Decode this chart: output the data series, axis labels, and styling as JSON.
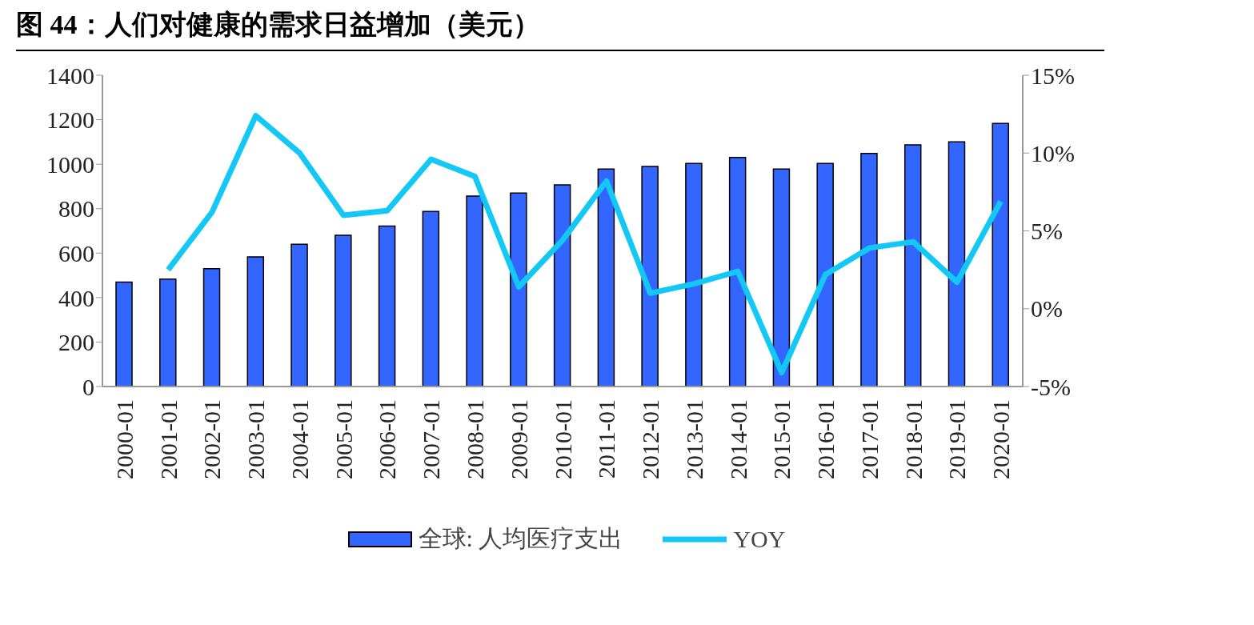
{
  "chart_data": {
    "type": "bar",
    "title": "图 44：人们对健康的需求日益增加（美元）",
    "categories": [
      "2000-01",
      "2001-01",
      "2002-01",
      "2003-01",
      "2004-01",
      "2005-01",
      "2006-01",
      "2007-01",
      "2008-01",
      "2009-01",
      "2010-01",
      "2011-01",
      "2012-01",
      "2013-01",
      "2014-01",
      "2015-01",
      "2016-01",
      "2017-01",
      "2018-01",
      "2019-01",
      "2020-01"
    ],
    "series": [
      {
        "name": "全球: 人均医疗支出",
        "color": "#3366ff",
        "values": [
          470,
          483,
          530,
          583,
          640,
          680,
          722,
          787,
          857,
          870,
          907,
          978,
          990,
          1003,
          1030,
          978,
          1003,
          1048,
          1087,
          1100,
          1183
        ]
      },
      {
        "name": "YOY",
        "type": "line",
        "axis": "y2",
        "color": "#13c8f5",
        "values": [
          null,
          2.5,
          6.2,
          12.4,
          10.0,
          6.0,
          6.3,
          9.6,
          8.5,
          1.4,
          4.4,
          8.2,
          1.0,
          1.6,
          2.4,
          -4.1,
          2.2,
          3.9,
          4.3,
          1.7,
          6.9
        ]
      }
    ],
    "ylim": [
      0,
      1400
    ],
    "yticks": [
      0,
      200,
      400,
      600,
      800,
      1000,
      1200,
      1400
    ],
    "y2lim": [
      -5,
      15
    ],
    "y2ticks": [
      {
        "value": -5,
        "label": "-5%"
      },
      {
        "value": 0,
        "label": "0%"
      },
      {
        "value": 5,
        "label": "5%"
      },
      {
        "value": 10,
        "label": "10%"
      },
      {
        "value": 15,
        "label": "15%"
      }
    ],
    "grid": false,
    "legend": "bottom",
    "marker": "none",
    "line_style": "solid"
  }
}
